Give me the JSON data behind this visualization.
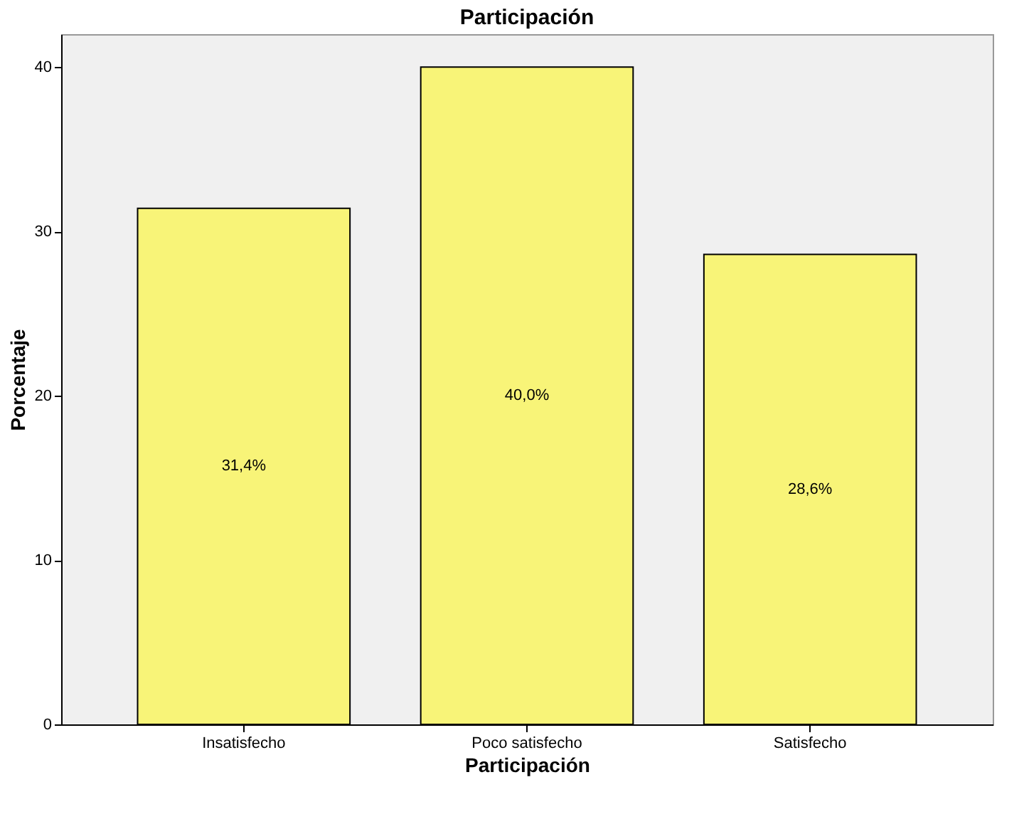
{
  "chart_data": {
    "type": "bar",
    "title": "Participación",
    "xlabel": "Participación",
    "ylabel": "Porcentaje",
    "categories": [
      "Insatisfecho",
      "Poco satisfecho",
      "Satisfecho"
    ],
    "values": [
      31.4,
      40.0,
      28.6
    ],
    "value_labels": [
      "31,4%",
      "40,0%",
      "28,6%"
    ],
    "color": "#f8f478",
    "ylim": [
      0,
      42
    ],
    "yticks": [
      0,
      10,
      20,
      30,
      40
    ]
  }
}
